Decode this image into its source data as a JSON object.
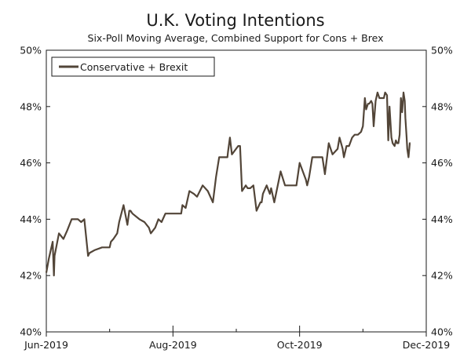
{
  "chart_data": {
    "type": "line",
    "title": "U.K. Voting Intentions",
    "subtitle": "Six-Poll Moving Average, Combined Support for Cons + Brex",
    "ylim": [
      40,
      50
    ],
    "y_ticks": [
      40,
      42,
      44,
      46,
      48,
      50
    ],
    "y_tick_labels": [
      "40%",
      "42%",
      "44%",
      "46%",
      "48%",
      "50%"
    ],
    "x_range": [
      0,
      6
    ],
    "x_ticks": [
      0,
      2,
      4,
      6
    ],
    "x_tick_labels": [
      "Jun-2019",
      "Aug-2019",
      "Oct-2019",
      "Dec-2019"
    ],
    "legend_position": "top-left",
    "series": [
      {
        "name": "Conservative + Brexit",
        "color": "#524538",
        "x": [
          0.0,
          0.04,
          0.1,
          0.12,
          0.13,
          0.2,
          0.27,
          0.33,
          0.4,
          0.47,
          0.5,
          0.55,
          0.6,
          0.66,
          0.68,
          0.76,
          0.88,
          1.0,
          1.02,
          1.06,
          1.12,
          1.15,
          1.22,
          1.28,
          1.31,
          1.33,
          1.36,
          1.47,
          1.55,
          1.62,
          1.65,
          1.72,
          1.77,
          1.82,
          1.88,
          1.96,
          2.0,
          2.08,
          2.13,
          2.15,
          2.2,
          2.26,
          2.33,
          2.38,
          2.47,
          2.55,
          2.63,
          2.68,
          2.73,
          2.78,
          2.83,
          2.86,
          2.87,
          2.9,
          2.93,
          3.03,
          3.06,
          3.09,
          3.15,
          3.18,
          3.22,
          3.27,
          3.32,
          3.38,
          3.4,
          3.42,
          3.48,
          3.53,
          3.55,
          3.6,
          3.7,
          3.77,
          3.82,
          3.85,
          3.87,
          3.9,
          3.92,
          3.95,
          4.0,
          4.1,
          4.12,
          4.15,
          4.2,
          4.26,
          4.3,
          4.36,
          4.4,
          4.46,
          4.52,
          4.6,
          4.63,
          4.68,
          4.7,
          4.74,
          4.78,
          4.83,
          4.87,
          4.92,
          4.97,
          5.0,
          5.03,
          5.05,
          5.08,
          5.1,
          5.13,
          5.15,
          5.17,
          5.2,
          5.23,
          5.26,
          5.3,
          5.33,
          5.35,
          5.38,
          5.4,
          5.42,
          5.45,
          5.47,
          5.5,
          5.52,
          5.54,
          5.56,
          5.58,
          5.6,
          5.62,
          5.64,
          5.66,
          5.67,
          5.69,
          5.7,
          5.72,
          5.74,
          5.75
        ],
        "values": [
          42.1,
          42.6,
          43.2,
          42.0,
          42.7,
          43.5,
          43.3,
          43.6,
          44.0,
          44.0,
          44.0,
          43.9,
          44.0,
          42.7,
          42.8,
          42.9,
          43.0,
          43.0,
          43.2,
          43.3,
          43.5,
          43.9,
          44.5,
          43.8,
          44.3,
          44.3,
          44.2,
          44.0,
          43.9,
          43.7,
          43.5,
          43.7,
          44.0,
          43.9,
          44.2,
          44.2,
          44.2,
          44.2,
          44.2,
          44.5,
          44.4,
          45.0,
          44.9,
          44.8,
          45.2,
          45.0,
          44.6,
          45.5,
          46.2,
          46.2,
          46.2,
          46.2,
          46.4,
          46.9,
          46.3,
          46.6,
          46.6,
          45.0,
          45.2,
          45.1,
          45.1,
          45.2,
          44.3,
          44.6,
          44.6,
          44.9,
          45.2,
          44.9,
          45.1,
          44.6,
          45.7,
          45.2,
          45.2,
          45.2,
          45.2,
          45.2,
          45.2,
          45.2,
          46.0,
          45.4,
          45.2,
          45.5,
          46.2,
          46.2,
          46.2,
          46.2,
          45.6,
          46.7,
          46.3,
          46.5,
          46.9,
          46.5,
          46.2,
          46.6,
          46.6,
          46.9,
          47.0,
          47.0,
          47.1,
          47.3,
          48.3,
          47.9,
          48.1,
          48.1,
          48.2,
          48.1,
          47.3,
          48.2,
          48.5,
          48.3,
          48.3,
          48.3,
          48.5,
          48.4,
          46.8,
          48.0,
          46.9,
          46.7,
          46.6,
          46.8,
          46.7,
          46.7,
          47.0,
          48.3,
          47.8,
          48.5,
          48.2,
          47.6,
          46.9,
          46.5,
          46.2,
          46.7,
          46.7
        ]
      }
    ]
  }
}
